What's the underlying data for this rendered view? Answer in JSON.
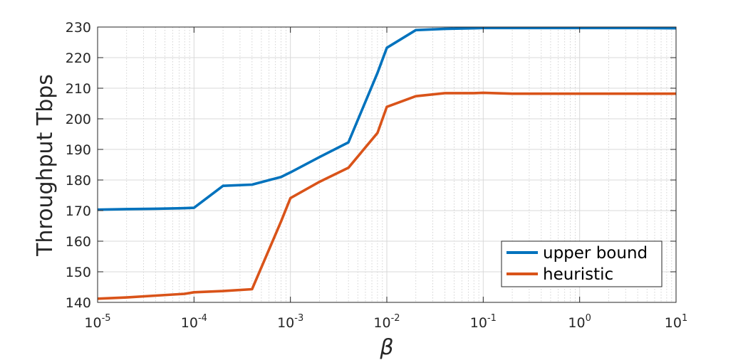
{
  "chart_data": {
    "type": "line",
    "xlabel": "β",
    "ylabel": "Throughput Tbps",
    "xscale": "log",
    "xlim": [
      1e-05,
      10
    ],
    "ylim": [
      140,
      230
    ],
    "xticks": [
      {
        "base": "10",
        "exp": "-5",
        "value": 1e-05
      },
      {
        "base": "10",
        "exp": "-4",
        "value": 0.0001
      },
      {
        "base": "10",
        "exp": "-3",
        "value": 0.001
      },
      {
        "base": "10",
        "exp": "-2",
        "value": 0.01
      },
      {
        "base": "10",
        "exp": "-1",
        "value": 0.1
      },
      {
        "base": "10",
        "exp": "0",
        "value": 1
      },
      {
        "base": "10",
        "exp": "1",
        "value": 10
      }
    ],
    "yticks": [
      "140",
      "150",
      "160",
      "170",
      "180",
      "190",
      "200",
      "210",
      "220",
      "230"
    ],
    "grid": true,
    "minor_grid": true,
    "legend_position": "bottom-right",
    "series": [
      {
        "name": "upper bound",
        "color": "#0072BD",
        "points": [
          [
            1e-05,
            170.3
          ],
          [
            2e-05,
            170.5
          ],
          [
            4e-05,
            170.6
          ],
          [
            8e-05,
            170.8
          ],
          [
            0.0001,
            170.9
          ],
          [
            0.0002,
            178.1
          ],
          [
            0.0004,
            178.5
          ],
          [
            0.0008,
            181.0
          ],
          [
            0.001,
            182.5
          ],
          [
            0.002,
            187.5
          ],
          [
            0.004,
            192.3
          ],
          [
            0.008,
            215.0
          ],
          [
            0.01,
            223.2
          ],
          [
            0.02,
            229.0
          ],
          [
            0.04,
            229.4
          ],
          [
            0.08,
            229.6
          ],
          [
            0.1,
            229.7
          ],
          [
            0.2,
            229.7
          ],
          [
            0.4,
            229.7
          ],
          [
            1,
            229.7
          ],
          [
            2,
            229.7
          ],
          [
            4,
            229.7
          ],
          [
            10,
            229.6
          ]
        ]
      },
      {
        "name": "heuristic",
        "color": "#D95319",
        "points": [
          [
            1e-05,
            141.2
          ],
          [
            2e-05,
            141.6
          ],
          [
            4e-05,
            142.2
          ],
          [
            8e-05,
            142.8
          ],
          [
            0.0001,
            143.3
          ],
          [
            0.0002,
            143.7
          ],
          [
            0.0004,
            144.3
          ],
          [
            0.0008,
            166.5
          ],
          [
            0.001,
            174.1
          ],
          [
            0.002,
            179.4
          ],
          [
            0.004,
            184.0
          ],
          [
            0.008,
            195.4
          ],
          [
            0.01,
            203.9
          ],
          [
            0.02,
            207.4
          ],
          [
            0.04,
            208.4
          ],
          [
            0.08,
            208.4
          ],
          [
            0.1,
            208.5
          ],
          [
            0.2,
            208.2
          ],
          [
            0.4,
            208.2
          ],
          [
            1,
            208.2
          ],
          [
            2,
            208.2
          ],
          [
            4,
            208.2
          ],
          [
            10,
            208.2
          ]
        ]
      }
    ]
  }
}
